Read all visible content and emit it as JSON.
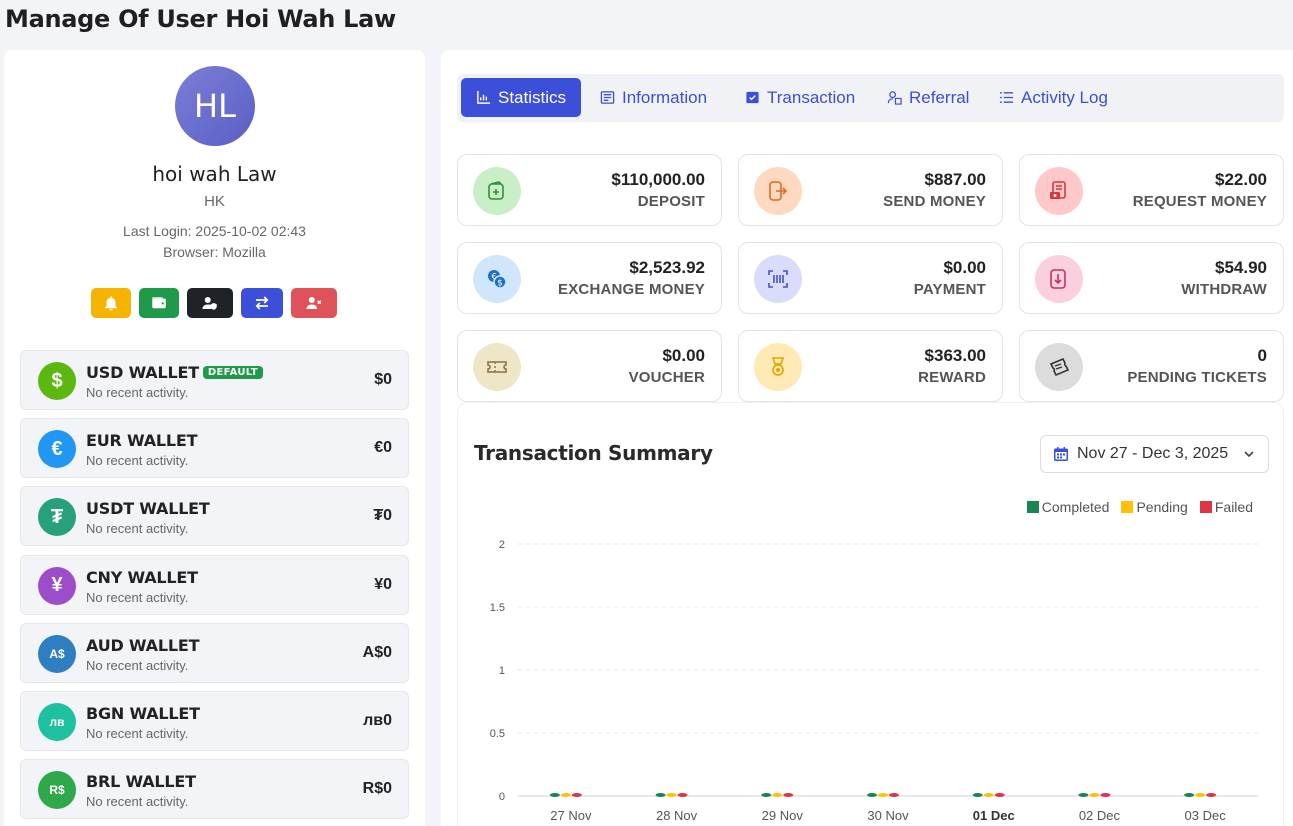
{
  "page": {
    "title": "Manage Of User Hoi Wah Law"
  },
  "profile": {
    "initials": "HL",
    "name": "hoi wah Law",
    "country": "HK",
    "last_login": "Last Login: 2025-10-02 02:43",
    "browser": "Browser: Mozilla",
    "actions": [
      "bell-icon",
      "wallet-icon",
      "user-shield-icon",
      "transfer-icon",
      "user-remove-icon"
    ]
  },
  "wallets": [
    {
      "name": "USD WALLET",
      "badge": "DEFAULT",
      "sub": "No recent activity.",
      "balance": "$0",
      "symbol": "$",
      "color": "#5cb811"
    },
    {
      "name": "EUR WALLET",
      "badge": "",
      "sub": "No recent activity.",
      "balance": "€0",
      "symbol": "€",
      "color": "#2196f3"
    },
    {
      "name": "USDT WALLET",
      "badge": "",
      "sub": "No recent activity.",
      "balance": "₮0",
      "symbol": "₮",
      "color": "#26a17b"
    },
    {
      "name": "CNY WALLET",
      "badge": "",
      "sub": "No recent activity.",
      "balance": "¥0",
      "symbol": "¥",
      "color": "#9b4dca"
    },
    {
      "name": "AUD WALLET",
      "badge": "",
      "sub": "No recent activity.",
      "balance": "A$0",
      "symbol": "A$",
      "color": "#2d7fc1"
    },
    {
      "name": "BGN WALLET",
      "badge": "",
      "sub": "No recent activity.",
      "balance": "лв0",
      "symbol": "лв",
      "color": "#1fc0a0"
    },
    {
      "name": "BRL WALLET",
      "badge": "",
      "sub": "No recent activity.",
      "balance": "R$0",
      "symbol": "R$",
      "color": "#2ea84a"
    }
  ],
  "tabs": [
    {
      "label": "Statistics",
      "icon": "chart-icon",
      "active": true
    },
    {
      "label": "Information",
      "icon": "info-card-icon",
      "active": false
    },
    {
      "label": "Transaction",
      "icon": "transaction-icon",
      "active": false
    },
    {
      "label": "Referral",
      "icon": "referral-icon",
      "active": false
    },
    {
      "label": "Activity Log",
      "icon": "list-icon",
      "active": false
    }
  ],
  "stats": [
    {
      "value": "$110,000.00",
      "label": "DEPOSIT",
      "icon": "deposit-icon",
      "bg": "#c9efc7",
      "fg": "#2c8f3c"
    },
    {
      "value": "$887.00",
      "label": "SEND MONEY",
      "icon": "send-icon",
      "bg": "#ffd8c2",
      "fg": "#e06a1c"
    },
    {
      "value": "$22.00",
      "label": "REQUEST MONEY",
      "icon": "request-icon",
      "bg": "#ffc9c9",
      "fg": "#d9363e"
    },
    {
      "value": "$2,523.92",
      "label": "EXCHANGE MONEY",
      "icon": "exchange-icon",
      "bg": "#cfe6fb",
      "fg": "#1f6fc2"
    },
    {
      "value": "$0.00",
      "label": "PAYMENT",
      "icon": "payment-icon",
      "bg": "#d9dcfa",
      "fg": "#4452c9"
    },
    {
      "value": "$54.90",
      "label": "WITHDRAW",
      "icon": "withdraw-icon",
      "bg": "#fbd0de",
      "fg": "#c8305f"
    },
    {
      "value": "$0.00",
      "label": "VOUCHER",
      "icon": "voucher-icon",
      "bg": "#efe5c7",
      "fg": "#8a7440"
    },
    {
      "value": "$363.00",
      "label": "REWARD",
      "icon": "reward-icon",
      "bg": "#ffeab5",
      "fg": "#e3a400"
    },
    {
      "value": "0",
      "label": "PENDING TICKETS",
      "icon": "ticket-icon",
      "bg": "#dcdcdc",
      "fg": "#333333"
    }
  ],
  "summary": {
    "title": "Transaction Summary",
    "date_range": "Nov 27 - Dec 3, 2025"
  },
  "chart_data": {
    "type": "bar",
    "categories": [
      "27 Nov",
      "28 Nov",
      "29 Nov",
      "30 Nov",
      "01 Dec",
      "02 Dec",
      "03 Dec"
    ],
    "highlight_category": "01 Dec",
    "series": [
      {
        "name": "Completed",
        "color": "#198754",
        "values": [
          0,
          0,
          0,
          0,
          0,
          0,
          0
        ]
      },
      {
        "name": "Pending",
        "color": "#ffc107",
        "values": [
          0,
          0,
          0,
          0,
          0,
          0,
          0
        ]
      },
      {
        "name": "Failed",
        "color": "#dc3545",
        "values": [
          0,
          0,
          0,
          0,
          0,
          0,
          0
        ]
      }
    ],
    "yticks": [
      "0",
      "0.5",
      "1",
      "1.5",
      "2"
    ],
    "ylim": [
      0,
      2
    ],
    "legend": "top-right",
    "grid": true
  }
}
